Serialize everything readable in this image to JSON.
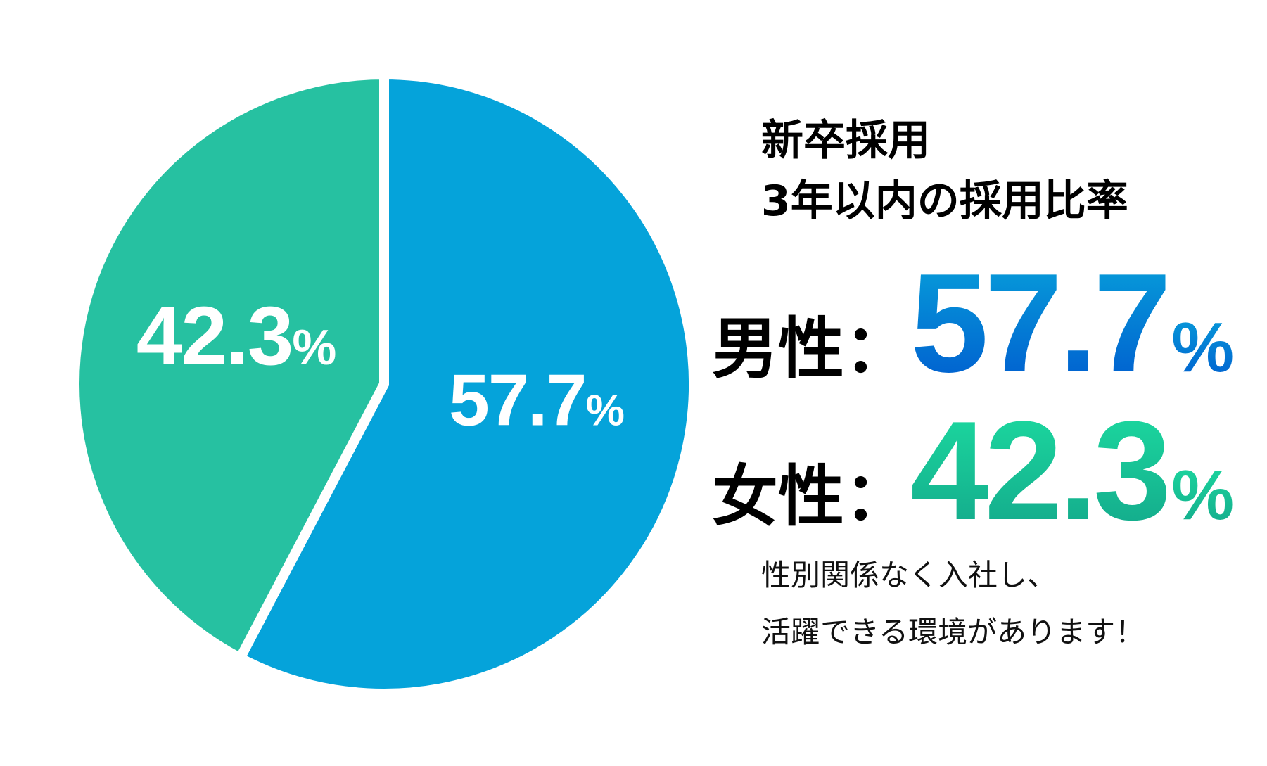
{
  "chart_data": {
    "type": "pie",
    "title": "新卒採用\n3年以内の採用比率",
    "slices": [
      {
        "label": "男性",
        "value": 57.7,
        "display": "57.7",
        "color": "#05A3DA"
      },
      {
        "label": "女性",
        "value": 42.3,
        "display": "42.3",
        "color": "#26C1A1"
      }
    ],
    "unit": "%",
    "start_angle": "top, clockwise"
  },
  "title_lines": [
    "新卒採用",
    "3年以内の採用比率"
  ],
  "stats": {
    "male": {
      "label": "男性：",
      "value": "57.7",
      "unit": "%"
    },
    "female": {
      "label": "女性：",
      "value": "42.3",
      "unit": "%"
    }
  },
  "note_lines": [
    "性別関係なく入社し、",
    "活躍できる環境があります！"
  ]
}
